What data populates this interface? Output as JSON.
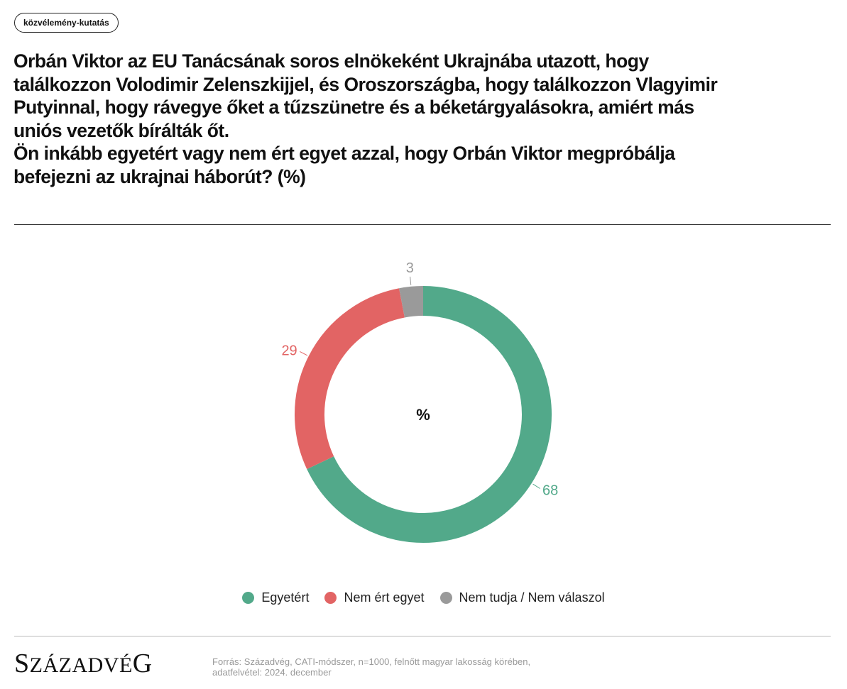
{
  "tag": "közvélemény-kutatás",
  "title_lines": [
    "Orbán Viktor az EU Tanácsának soros elnökeként Ukrajnába utazott, hogy",
    "találkozzon Volodimir Zelenszkijjel, és Oroszországba, hogy találkozzon Vlagyimir",
    "Putyinnal, hogy rávegye őket a tűzszünetre és a béketárgyalásokra, amiért más",
    "uniós vezetők bírálták őt.",
    "Ön inkább egyetért vagy nem ért egyet azzal, hogy Orbán Viktor megpróbálja",
    "befejezni az ukrajnai háborút? (%)"
  ],
  "chart_data": {
    "type": "pie",
    "donut": true,
    "center_label": "%",
    "categories": [
      "Egyetért",
      "Nem ért egyet",
      "Nem tudja / Nem válaszol"
    ],
    "values": [
      68,
      29,
      3
    ],
    "colors": [
      "#52a98a",
      "#e26464",
      "#9a9a9a"
    ],
    "legend_position": "bottom"
  },
  "logo": {
    "first": "S",
    "rest_small": "ZÁZADVÉ",
    "last": "G"
  },
  "source_lines": [
    "Forrás: Századvég, CATI-módszer, n=1000, felnőtt magyar lakosság körében,",
    "adatfelvétel: 2024. december"
  ]
}
